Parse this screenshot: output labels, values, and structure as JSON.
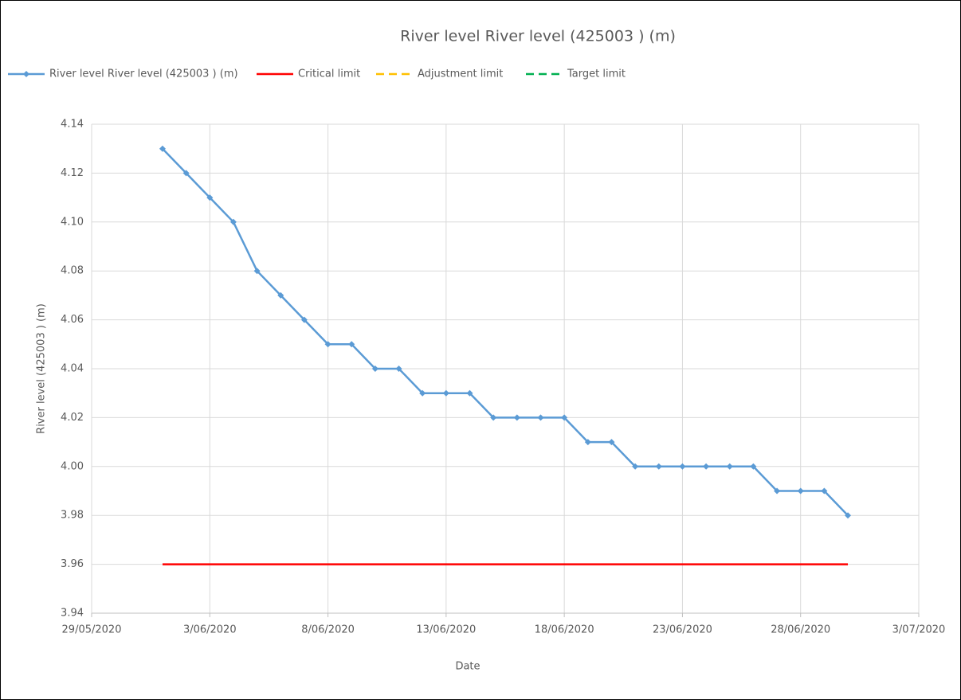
{
  "chart_data": {
    "type": "line",
    "title": "River level River level (425003 ) (m)",
    "x_label": "Date",
    "y_label": "River level (425003 ) (m)",
    "x": [
      "2020-06-01",
      "2020-06-02",
      "2020-06-03",
      "2020-06-04",
      "2020-06-05",
      "2020-06-06",
      "2020-06-07",
      "2020-06-08",
      "2020-06-09",
      "2020-06-10",
      "2020-06-11",
      "2020-06-12",
      "2020-06-13",
      "2020-06-14",
      "2020-06-15",
      "2020-06-16",
      "2020-06-17",
      "2020-06-18",
      "2020-06-19",
      "2020-06-20",
      "2020-06-21",
      "2020-06-22",
      "2020-06-23",
      "2020-06-24",
      "2020-06-25",
      "2020-06-26",
      "2020-06-27",
      "2020-06-28",
      "2020-06-29",
      "2020-06-30"
    ],
    "series": [
      {
        "name": "River level River level (425003 ) (m)",
        "color": "#5b9bd5",
        "dash": false,
        "marker": true,
        "values": [
          4.13,
          4.12,
          4.11,
          4.1,
          4.08,
          4.07,
          4.06,
          4.05,
          4.05,
          4.04,
          4.04,
          4.03,
          4.03,
          4.03,
          4.02,
          4.02,
          4.02,
          4.02,
          4.01,
          4.01,
          4.0,
          4.0,
          4.0,
          4.0,
          4.0,
          4.0,
          3.99,
          3.99,
          3.99,
          3.98
        ]
      },
      {
        "name": "Critical limit",
        "color": "#ff0000",
        "dash": false,
        "marker": false,
        "values": [
          3.96,
          3.96,
          3.96,
          3.96,
          3.96,
          3.96,
          3.96,
          3.96,
          3.96,
          3.96,
          3.96,
          3.96,
          3.96,
          3.96,
          3.96,
          3.96,
          3.96,
          3.96,
          3.96,
          3.96,
          3.96,
          3.96,
          3.96,
          3.96,
          3.96,
          3.96,
          3.96,
          3.96,
          3.96,
          3.96
        ]
      },
      {
        "name": "Adjustment limit",
        "color": "#ffc000",
        "dash": true,
        "marker": false,
        "values": [
          null,
          null,
          null,
          null,
          null,
          null,
          null,
          null,
          null,
          null,
          null,
          null,
          null,
          null,
          null,
          null,
          null,
          null,
          null,
          null,
          null,
          null,
          null,
          null,
          null,
          null,
          null,
          null,
          null,
          null
        ]
      },
      {
        "name": "Target limit",
        "color": "#00b050",
        "dash": true,
        "marker": false,
        "values": [
          null,
          null,
          null,
          null,
          null,
          null,
          null,
          null,
          null,
          null,
          null,
          null,
          null,
          null,
          null,
          null,
          null,
          null,
          null,
          null,
          null,
          null,
          null,
          null,
          null,
          null,
          null,
          null,
          null,
          null
        ]
      }
    ],
    "xlim": [
      "2020-05-29",
      "2020-07-03"
    ],
    "xticks": [
      {
        "value": "2020-05-29",
        "label": "29/05/2020"
      },
      {
        "value": "2020-06-03",
        "label": "3/06/2020"
      },
      {
        "value": "2020-06-08",
        "label": "8/06/2020"
      },
      {
        "value": "2020-06-13",
        "label": "13/06/2020"
      },
      {
        "value": "2020-06-18",
        "label": "18/06/2020"
      },
      {
        "value": "2020-06-23",
        "label": "23/06/2020"
      },
      {
        "value": "2020-06-28",
        "label": "28/06/2020"
      },
      {
        "value": "2020-07-03",
        "label": "3/07/2020"
      }
    ],
    "ylim": [
      3.94,
      4.14
    ],
    "yticks": [
      {
        "value": 3.94,
        "label": "3.94"
      },
      {
        "value": 3.96,
        "label": "3.96"
      },
      {
        "value": 3.98,
        "label": "3.98"
      },
      {
        "value": 4.0,
        "label": "4.00"
      },
      {
        "value": 4.02,
        "label": "4.02"
      },
      {
        "value": 4.04,
        "label": "4.04"
      },
      {
        "value": 4.06,
        "label": "4.06"
      },
      {
        "value": 4.08,
        "label": "4.08"
      },
      {
        "value": 4.1,
        "label": "4.10"
      },
      {
        "value": 4.12,
        "label": "4.12"
      },
      {
        "value": 4.14,
        "label": "4.14"
      }
    ],
    "grid": true,
    "legend": "top"
  }
}
